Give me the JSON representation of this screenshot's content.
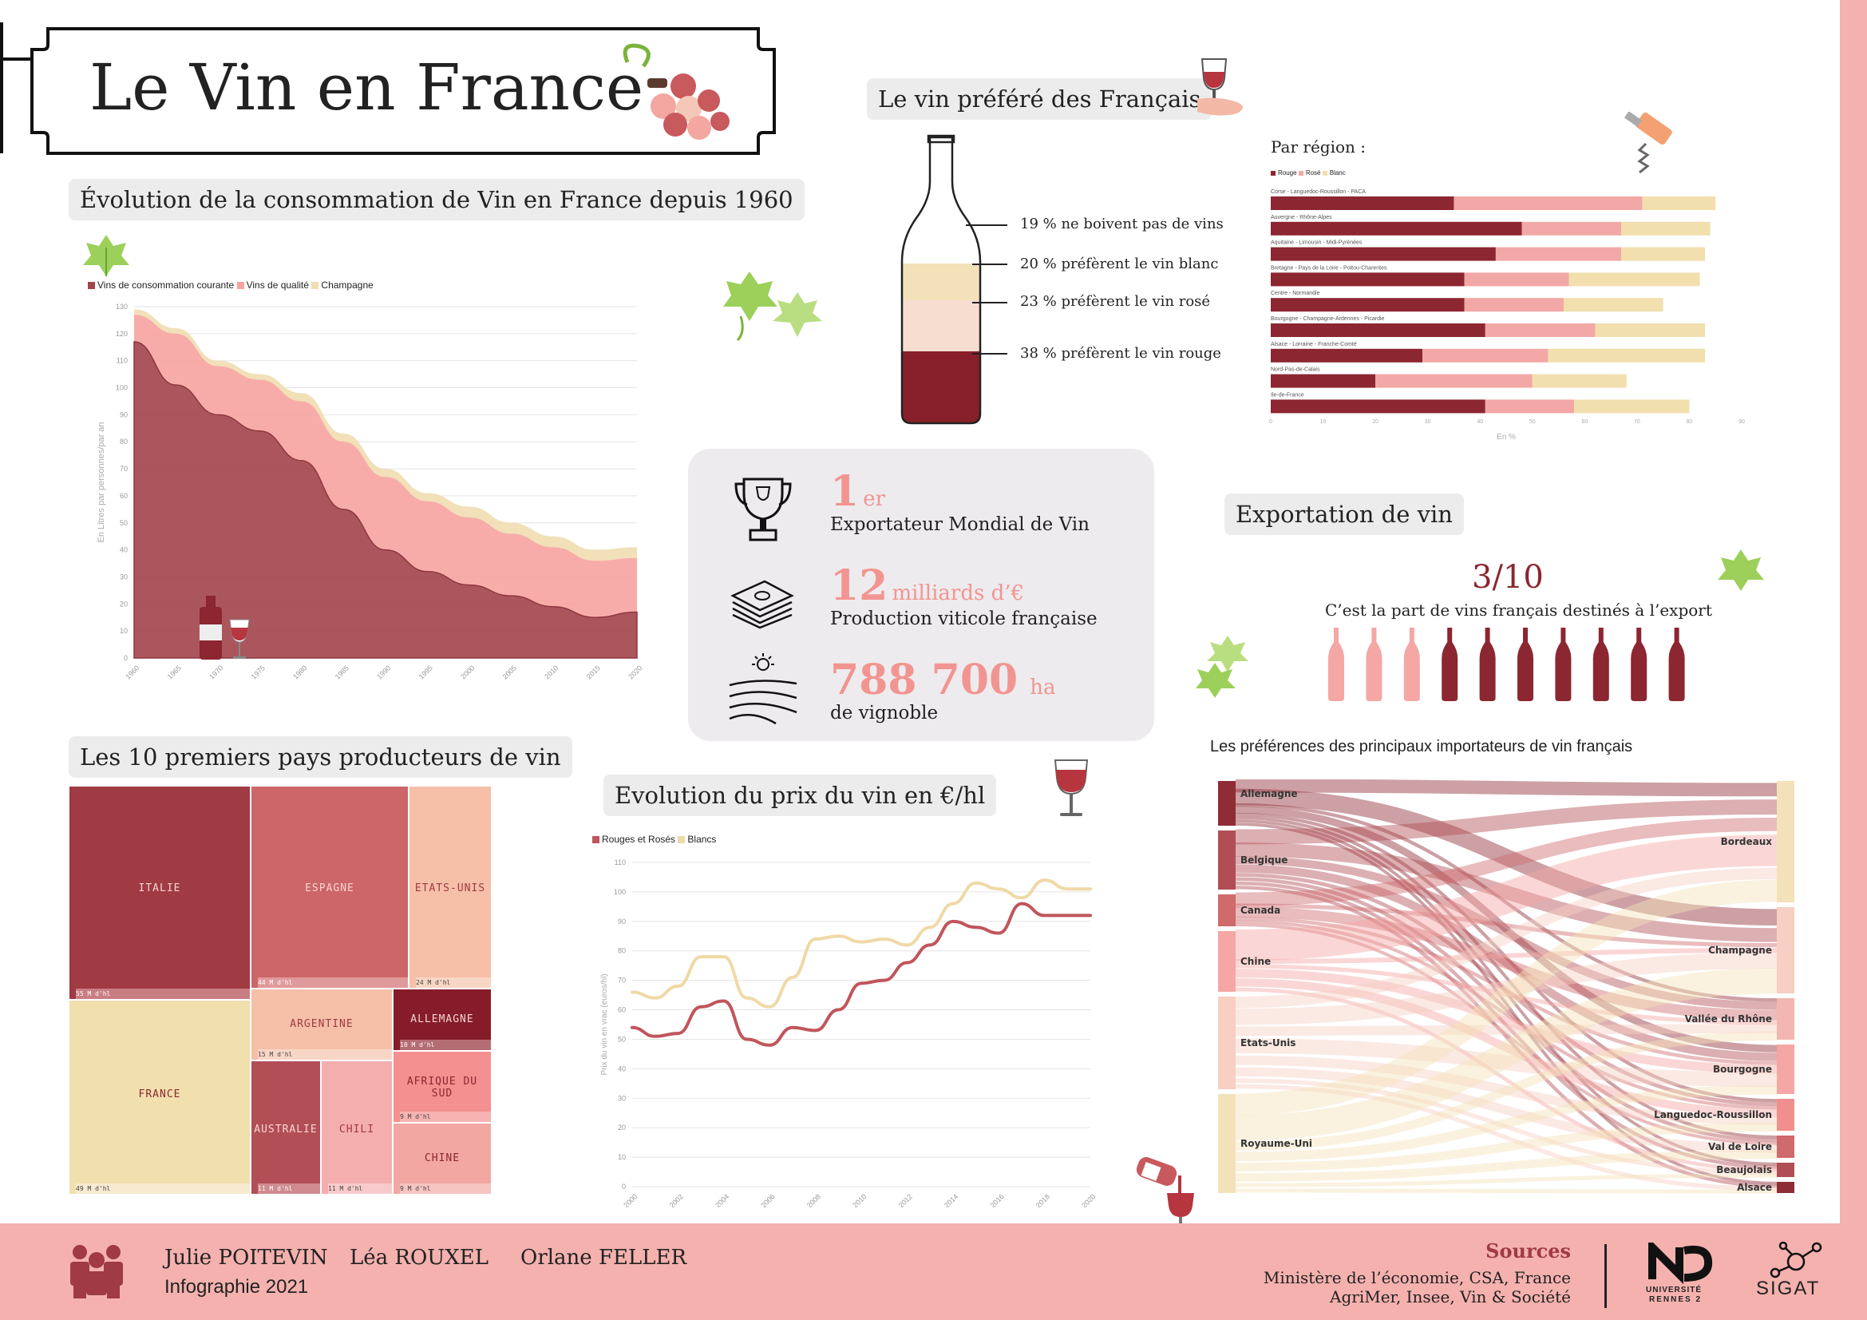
{
  "title": "Le Vin en France",
  "consumption": {
    "title": "Évolution de la consommation de Vin en France depuis 1960",
    "legend": [
      "Vins de consommation courante",
      "Vins de qualité",
      "Champagne"
    ],
    "ylabel": "En Litres par personnes/par an",
    "colors": [
      "#a2444b",
      "#f7a3a0",
      "#f0ddb0"
    ]
  },
  "favorite": {
    "title": "Le vin préféré des Français",
    "items": [
      {
        "label": "19 % ne boivent pas de vins"
      },
      {
        "label": "20 % préfèrent le vin blanc",
        "color": "#f3e2b9"
      },
      {
        "label": "23 % préfèrent le vin rosé",
        "color": "#f6ddd0"
      },
      {
        "label": "38 % préfèrent le vin rouge",
        "color": "#87202a"
      }
    ]
  },
  "region": {
    "title": "Par région :",
    "legend": [
      "Rouge",
      "Rosé",
      "Blanc"
    ],
    "xlabel": "En %",
    "colors": [
      "#8c2630",
      "#f2a8a6",
      "#f1dfae"
    ]
  },
  "stats": [
    {
      "big": "1",
      "unit": "er",
      "sub": "Exportateur Mondial de Vin",
      "icon": "trophy-icon"
    },
    {
      "big": "12",
      "unit": "milliards d’€",
      "sub": "Production viticole française",
      "icon": "money-icon"
    },
    {
      "big": "788 700",
      "unit": "ha",
      "sub": "de vignoble",
      "icon": "vineyard-icon"
    }
  ],
  "export": {
    "title": "Exportation de vin",
    "ratio": "3/10",
    "caption": "C’est la part de vins français destinés à l’export",
    "exported": 3,
    "total": 10
  },
  "producers": {
    "title": "Les 10 premiers pays producteurs de vin",
    "cells": [
      {
        "name": "ITALIE",
        "value": "55 M d'hl"
      },
      {
        "name": "FRANCE",
        "value": "49 M d'hl"
      },
      {
        "name": "ESPAGNE",
        "value": "44 M d'hl"
      },
      {
        "name": "ETATS-UNIS",
        "value": "24 M d'hl"
      },
      {
        "name": "ARGENTINE",
        "value": "15 M d'hl"
      },
      {
        "name": "ALLEMAGNE",
        "value": "10 M d'hl"
      },
      {
        "name": "AUSTRALIE",
        "value": "11 M d'hl"
      },
      {
        "name": "CHILI",
        "value": "11 M d'hl"
      },
      {
        "name": "AFRIQUE DU SUD",
        "value": "9 M d'hl"
      },
      {
        "name": "CHINE",
        "value": "9 M d'hl"
      }
    ]
  },
  "price": {
    "title": "Evolution du prix du vin en €/hl",
    "legend": [
      "Rouges et Rosés",
      "Blancs"
    ],
    "ylabel": "Prix du vin en vrac (euros/hl)",
    "colors": [
      "#c1555b",
      "#efd9a6"
    ]
  },
  "importers": {
    "title": "Les préférences des principaux importateurs de vin français",
    "left": [
      "Allemagne",
      "Belgique",
      "Canada",
      "Chine",
      "Etats-Unis",
      "Royaume-Uni"
    ],
    "right": [
      "Bordeaux",
      "Champagne",
      "Vallée du Rhône",
      "Bourgogne",
      "Languedoc-Roussillon",
      "Val de Loire",
      "Beaujolais",
      "Alsace"
    ]
  },
  "footer": {
    "authors": [
      "Julie POITEVIN",
      "Léa ROUXEL",
      "Orlane FELLER"
    ],
    "subtitle": "Infographie 2021",
    "sources_title": "Sources",
    "sources_line1": "Ministère de l’économie, CSA, France",
    "sources_line2": "AgriMer, Insee, Vin & Société",
    "logo1_line1": "UNIVERSITÉ",
    "logo1_line2": "RENNES 2",
    "logo2": "SIGAT"
  },
  "chart_data": [
    {
      "type": "area",
      "x": [
        1960,
        1965,
        1970,
        1975,
        1980,
        1985,
        1990,
        1995,
        2000,
        2005,
        2010,
        2015,
        2020
      ],
      "series": [
        {
          "name": "Vins de consommation courante",
          "values": [
            117,
            101,
            90,
            84,
            73,
            55,
            40,
            32,
            27,
            23,
            19,
            15,
            17
          ]
        },
        {
          "name": "Vins de qualité",
          "values": [
            10,
            19,
            18,
            19,
            22,
            25,
            27,
            26,
            25,
            23,
            22,
            21,
            20
          ]
        },
        {
          "name": "Champagne",
          "values": [
            2,
            2,
            2,
            2,
            3,
            3,
            3,
            3,
            4,
            4,
            4,
            4,
            4
          ]
        }
      ],
      "xlim": [
        1960,
        2020
      ],
      "ylim": [
        0,
        130
      ],
      "yticks": [
        0,
        10,
        20,
        30,
        40,
        50,
        60,
        70,
        80,
        90,
        100,
        110,
        120,
        130
      ],
      "xticks": [
        1960,
        1965,
        1970,
        1975,
        1980,
        1985,
        1990,
        1995,
        2000,
        2005,
        2010,
        2015,
        2020
      ],
      "ylabel": "En Litres par personnes/par an",
      "grid": true,
      "legend": "top-left"
    },
    {
      "type": "bar",
      "title": "Par région :",
      "categories": [
        "Corse - Languedoc-Roussillon - PACA",
        "Auvergne - Rhône-Alpes",
        "Aquitaine - Limousin - Midi-Pyrénées",
        "Bretagne - Pays de la Loire - Poitou-Charentes",
        "Centre - Normandie",
        "Bourgogne - Champagne-Ardennes - Picardie",
        "Alsace - Lorraine - Franche-Comté",
        "Nord-Pas-de-Calais",
        "Ile-de-France"
      ],
      "series": [
        {
          "name": "Rouge",
          "values": [
            35,
            48,
            43,
            37,
            37,
            41,
            29,
            20,
            41
          ]
        },
        {
          "name": "Rosé",
          "values": [
            36,
            19,
            24,
            20,
            19,
            21,
            24,
            30,
            17
          ]
        },
        {
          "name": "Blanc",
          "values": [
            14,
            17,
            16,
            25,
            19,
            21,
            30,
            18,
            22
          ]
        }
      ],
      "xlim": [
        0,
        90
      ],
      "xticks": [
        0,
        10,
        20,
        30,
        40,
        50,
        60,
        70,
        80,
        90
      ],
      "xlabel": "En %",
      "legend": "top-left",
      "stacked": true,
      "orientation": "horizontal"
    },
    {
      "type": "line",
      "x": [
        2000,
        2001,
        2002,
        2003,
        2004,
        2005,
        2006,
        2007,
        2008,
        2009,
        2010,
        2011,
        2012,
        2013,
        2014,
        2015,
        2016,
        2017,
        2018,
        2019,
        2020
      ],
      "series": [
        {
          "name": "Rouges et Rosés",
          "values": [
            54,
            51,
            52,
            61,
            63,
            50,
            48,
            54,
            53,
            60,
            69,
            70,
            76,
            82,
            90,
            88,
            86,
            96,
            92,
            92,
            92
          ]
        },
        {
          "name": "Blancs",
          "values": [
            66,
            64,
            68,
            78,
            78,
            64,
            61,
            71,
            84,
            85,
            83,
            84,
            82,
            88,
            96,
            103,
            101,
            98,
            104,
            101,
            101
          ]
        }
      ],
      "xlim": [
        2000,
        2020
      ],
      "ylim": [
        0,
        110
      ],
      "yticks": [
        0,
        10,
        20,
        30,
        40,
        50,
        60,
        70,
        80,
        90,
        100,
        110
      ],
      "xticks": [
        2000,
        2002,
        2004,
        2006,
        2008,
        2010,
        2012,
        2014,
        2016,
        2018,
        2020
      ],
      "ylabel": "Prix du vin en vrac (euros/hl)",
      "grid": true,
      "legend": "top-left"
    },
    {
      "type": "treemap",
      "categories": [
        "ITALIE",
        "FRANCE",
        "ESPAGNE",
        "ETATS-UNIS",
        "ARGENTINE",
        "ALLEMAGNE",
        "AUSTRALIE",
        "CHILI",
        "AFRIQUE DU SUD",
        "CHINE"
      ],
      "values": [
        55,
        49,
        44,
        24,
        15,
        10,
        11,
        11,
        9,
        9
      ]
    },
    {
      "type": "sankey",
      "sources": [
        "Allemagne",
        "Belgique",
        "Canada",
        "Chine",
        "Etats-Unis",
        "Royaume-Uni"
      ],
      "targets": [
        "Bordeaux",
        "Champagne",
        "Vallée du Rhône",
        "Bourgogne",
        "Languedoc-Roussillon",
        "Val de Loire",
        "Beaujolais",
        "Alsace"
      ]
    }
  ]
}
